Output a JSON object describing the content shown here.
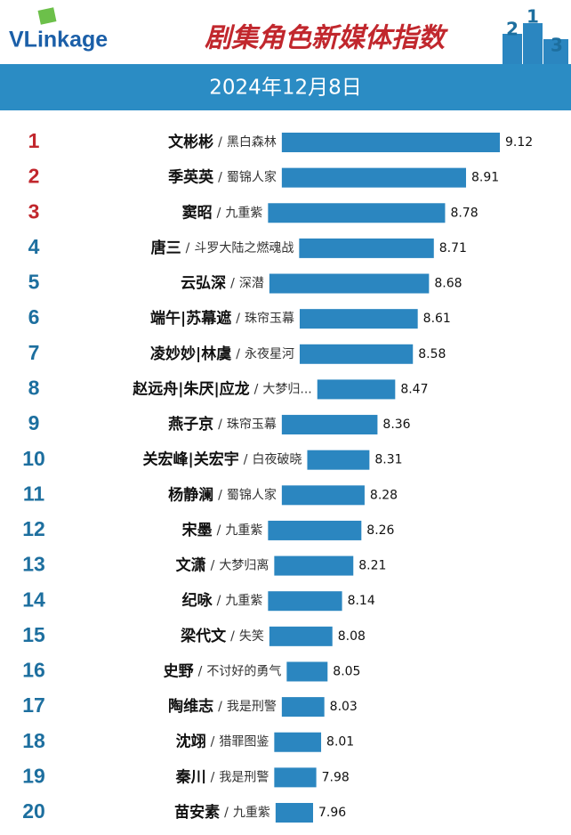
{
  "logo": "VLinkage",
  "chart_data": {
    "type": "bar",
    "orientation": "horizontal",
    "title": "剧集角色新媒体指数",
    "subtitle": "2024年12月8日",
    "podium": [
      "2",
      "1",
      "3"
    ],
    "separator": "/",
    "ranks": [
      1,
      2,
      3,
      4,
      5,
      6,
      7,
      8,
      9,
      10,
      11,
      12,
      13,
      14,
      15,
      16,
      17,
      18,
      19,
      20
    ],
    "rank_colors": [
      "#c1272d",
      "#c1272d",
      "#c1272d",
      "#1d6f9f",
      "#1d6f9f",
      "#1d6f9f",
      "#1d6f9f",
      "#1d6f9f",
      "#1d6f9f",
      "#1d6f9f",
      "#1d6f9f",
      "#1d6f9f",
      "#1d6f9f",
      "#1d6f9f",
      "#1d6f9f",
      "#1d6f9f",
      "#1d6f9f",
      "#1d6f9f",
      "#1d6f9f",
      "#1d6f9f"
    ],
    "names": [
      "文彬彬",
      "季英英",
      "窦昭",
      "唐三",
      "云弘深",
      "端午|苏幕遮",
      "凌妙妙|林虞",
      "赵远舟|朱厌|应龙",
      "燕子京",
      "关宏峰|关宏宇",
      "杨静澜",
      "宋墨",
      "文潇",
      "纪咏",
      "梁代文",
      "史野",
      "陶维志",
      "沈翊",
      "秦川",
      "苗安素"
    ],
    "shows": [
      "黑白森林",
      "蜀锦人家",
      "九重紫",
      "斗罗大陆之燃魂战",
      "深潜",
      "珠帘玉幕",
      "永夜星河",
      "大梦归...",
      "珠帘玉幕",
      "白夜破晓",
      "蜀锦人家",
      "九重紫",
      "大梦归离",
      "九重紫",
      "失笑",
      "不讨好的勇气",
      "我是刑警",
      "猎罪图鉴",
      "我是刑警",
      "九重紫"
    ],
    "values": [
      9.12,
      8.91,
      8.78,
      8.71,
      8.68,
      8.61,
      8.58,
      8.47,
      8.36,
      8.31,
      8.28,
      8.26,
      8.21,
      8.14,
      8.08,
      8.05,
      8.03,
      8.01,
      7.98,
      7.96
    ],
    "color": "#2b86c0"
  }
}
